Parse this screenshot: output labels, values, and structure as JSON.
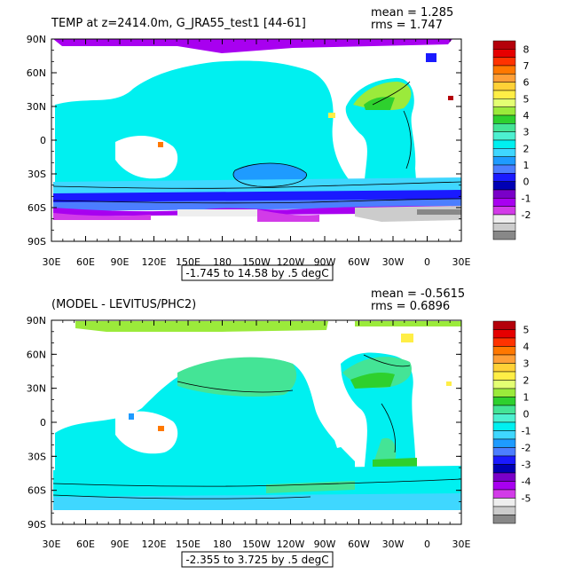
{
  "chart_data": [
    {
      "type": "heatmap",
      "title": "TEMP at z=2414.0m, G_JRA55_test1 [44-61]",
      "stats": {
        "mean": "mean = 1.285",
        "rms": "rms = 1.747"
      },
      "contour_info": "-1.745 to 14.58 by .5 degC",
      "x_ticks": [
        "30E",
        "60E",
        "90E",
        "120E",
        "150E",
        "180",
        "150W",
        "120W",
        "90W",
        "60W",
        "30W",
        "0",
        "30E"
      ],
      "y_ticks": [
        "90N",
        "60N",
        "30N",
        "0",
        "30S",
        "60S",
        "90S"
      ],
      "colorbar": {
        "labels": [
          "8",
          "7",
          "6",
          "5",
          "4",
          "3",
          "2",
          "1",
          "0",
          "-1",
          "-2"
        ],
        "colors": [
          "#b4000b",
          "#e60000",
          "#ff3300",
          "#ff7800",
          "#ff9f37",
          "#ffd137",
          "#ffee46",
          "#e4ff73",
          "#9bea3b",
          "#2ed02e",
          "#44e496",
          "#4df0d0",
          "#00f0f0",
          "#3fd7ff",
          "#1e9bff",
          "#4c7eff",
          "#1a1aff",
          "#0000b4",
          "#7a00c8",
          "#a800f0",
          "#d23be8",
          "#eeeeee",
          "#cccccc",
          "#888888"
        ]
      }
    },
    {
      "type": "heatmap",
      "title": "(MODEL - LEVITUS/PHC2)",
      "stats": {
        "mean": "mean = -0.5615",
        "rms": "rms = 0.6896"
      },
      "contour_info": "-2.355 to 3.725 by .5 degC",
      "x_ticks": [
        "30E",
        "60E",
        "90E",
        "120E",
        "150E",
        "180",
        "150W",
        "120W",
        "90W",
        "60W",
        "30W",
        "0",
        "30E"
      ],
      "y_ticks": [
        "90N",
        "60N",
        "30N",
        "0",
        "30S",
        "60S",
        "90S"
      ],
      "colorbar": {
        "labels": [
          "5",
          "4",
          "3",
          "2",
          "1",
          "0",
          "-1",
          "-2",
          "-3",
          "-4",
          "-5"
        ],
        "colors": [
          "#b4000b",
          "#e60000",
          "#ff3300",
          "#ff7800",
          "#ff9f37",
          "#ffd137",
          "#ffee46",
          "#e4ff73",
          "#9bea3b",
          "#2ed02e",
          "#44e496",
          "#4df0d0",
          "#00f0f0",
          "#3fd7ff",
          "#1e9bff",
          "#4c7eff",
          "#1a1aff",
          "#0000b4",
          "#7a00c8",
          "#a800f0",
          "#d23be8",
          "#eeeeee",
          "#cccccc",
          "#888888"
        ]
      }
    }
  ]
}
